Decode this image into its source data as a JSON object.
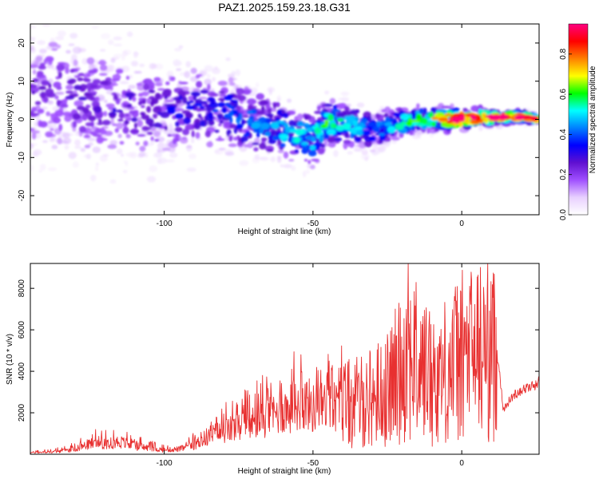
{
  "title": "PAZ1.2025.159.23.18.G31",
  "chart_data": [
    {
      "type": "heatmap",
      "xlabel": "Height of straight line (km)",
      "ylabel": "Frequency (Hz)",
      "xlim": [
        -145,
        26
      ],
      "ylim": [
        -25,
        25
      ],
      "xticks": [
        -100,
        -50,
        0
      ],
      "yticks": [
        -20,
        -10,
        0,
        10,
        20
      ],
      "colorbar": {
        "label": "Normalized spectral amplitude",
        "range": [
          0,
          0.95
        ],
        "ticks": [
          0.0,
          0.2,
          0.4,
          0.6,
          0.8
        ],
        "colors": [
          "#ffffff",
          "#e8d0ff",
          "#a050ff",
          "#6010d0",
          "#0000ff",
          "#0080ff",
          "#00ffff",
          "#00ff00",
          "#ffff00",
          "#ff8000",
          "#ff0000",
          "#ff0080"
        ]
      },
      "ridge": {
        "x": [
          -145,
          -120,
          -100,
          -90,
          -80,
          -70,
          -60,
          -55,
          -50,
          -45,
          -40,
          -35,
          -30,
          -25,
          -20,
          -15,
          -10,
          -5,
          0,
          5,
          10,
          15,
          20,
          26
        ],
        "f": [
          8,
          4,
          2,
          3,
          2,
          -1,
          -3,
          -4,
          -5,
          -1,
          -1,
          -2,
          -3,
          -2,
          -1,
          0,
          0,
          0,
          0,
          0.5,
          0.5,
          0.5,
          0.5,
          0
        ],
        "peak": [
          0.22,
          0.25,
          0.28,
          0.3,
          0.35,
          0.4,
          0.45,
          0.48,
          0.5,
          0.55,
          0.5,
          0.45,
          0.42,
          0.45,
          0.5,
          0.55,
          0.6,
          0.8,
          0.92,
          0.85,
          0.9,
          0.85,
          0.8,
          0.8
        ]
      }
    },
    {
      "type": "line",
      "xlabel": "Height of straight line (km)",
      "ylabel": "SNR (10 * v/v)",
      "xlim": [
        -145,
        26
      ],
      "ylim": [
        0,
        9200
      ],
      "xticks": [
        -100,
        -50,
        0
      ],
      "yticks": [
        2000,
        4000,
        6000,
        8000
      ],
      "color": "#e83030",
      "series": [
        {
          "x": [
            -145,
            -140,
            -135,
            -130,
            -125,
            -120,
            -115,
            -110,
            -105,
            -100,
            -95,
            -92,
            -88,
            -85,
            -80,
            -75,
            -70,
            -65,
            -60,
            -55,
            -52,
            -50,
            -45,
            -40,
            -35,
            -30,
            -25,
            -22,
            -20,
            -18,
            -15,
            -12,
            -10,
            -8,
            -5,
            -2,
            0,
            3,
            5,
            8,
            10,
            12,
            13,
            14,
            16,
            18,
            20,
            22,
            24,
            26
          ],
          "y": [
            80,
            100,
            150,
            250,
            500,
            550,
            600,
            400,
            300,
            200,
            250,
            350,
            600,
            900,
            1100,
            1300,
            1500,
            1800,
            2100,
            2300,
            2500,
            2200,
            2300,
            2400,
            2500,
            2800,
            3100,
            3800,
            4500,
            5200,
            4300,
            4000,
            3600,
            3800,
            4100,
            4500,
            4700,
            4900,
            5000,
            5100,
            4800,
            4800,
            3600,
            2100,
            2600,
            2900,
            3100,
            3200,
            3300,
            3500
          ],
          "spikes": [
            {
              "x": -118,
              "y": 800
            },
            {
              "x": -54,
              "y": 4800
            },
            {
              "x": -22,
              "y": 5700
            },
            {
              "x": -18,
              "y": 9200
            },
            {
              "x": -11,
              "y": 6300
            },
            {
              "x": 8,
              "y": 7200
            }
          ]
        }
      ]
    }
  ]
}
